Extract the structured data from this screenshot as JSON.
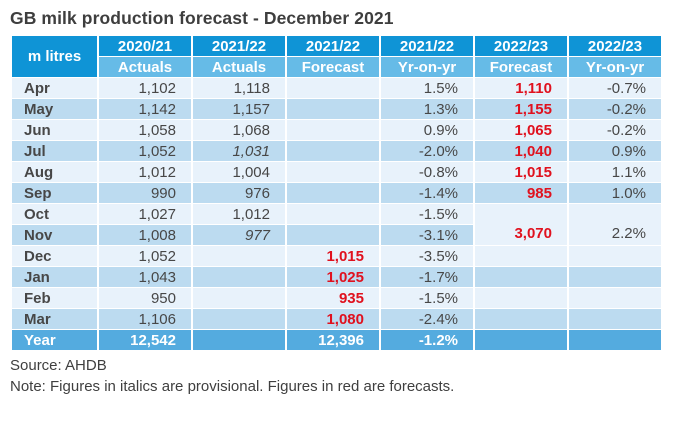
{
  "title": "GB milk production forecast - December 2021",
  "colors": {
    "header_blue": "#0f94d6",
    "subheader_blue": "#66bbe7",
    "year_row_blue": "#54abdf",
    "stripe_light": "#e8f2fb",
    "stripe_medium": "#bcdbf0",
    "forecast_red": "#e0111e",
    "text_gray": "#474747"
  },
  "table": {
    "corner_label": "m litres",
    "columns": [
      {
        "year": "2020/21",
        "sub": "Actuals"
      },
      {
        "year": "2021/22",
        "sub": "Actuals"
      },
      {
        "year": "2021/22",
        "sub": "Forecast"
      },
      {
        "year": "2021/22",
        "sub": "Yr-on-yr"
      },
      {
        "year": "2022/23",
        "sub": "Forecast"
      },
      {
        "year": "2022/23",
        "sub": "Yr-on-yr"
      }
    ],
    "rows": [
      {
        "month": "Apr",
        "cells": [
          {
            "text": "1,102"
          },
          {
            "text": "1,118"
          },
          {
            "text": ""
          },
          {
            "text": "1.5%"
          },
          {
            "text": "1,110",
            "red": true
          },
          {
            "text": "-0.7%"
          }
        ]
      },
      {
        "month": "May",
        "cells": [
          {
            "text": "1,142"
          },
          {
            "text": "1,157"
          },
          {
            "text": ""
          },
          {
            "text": "1.3%"
          },
          {
            "text": "1,155",
            "red": true
          },
          {
            "text": "-0.2%"
          }
        ]
      },
      {
        "month": "Jun",
        "cells": [
          {
            "text": "1,058"
          },
          {
            "text": "1,068"
          },
          {
            "text": ""
          },
          {
            "text": "0.9%"
          },
          {
            "text": "1,065",
            "red": true
          },
          {
            "text": "-0.2%"
          }
        ]
      },
      {
        "month": "Jul",
        "cells": [
          {
            "text": "1,052"
          },
          {
            "text": "1,031",
            "italic": true
          },
          {
            "text": ""
          },
          {
            "text": "-2.0%"
          },
          {
            "text": "1,040",
            "red": true
          },
          {
            "text": "0.9%"
          }
        ]
      },
      {
        "month": "Aug",
        "cells": [
          {
            "text": "1,012"
          },
          {
            "text": "1,004"
          },
          {
            "text": ""
          },
          {
            "text": "-0.8%"
          },
          {
            "text": "1,015",
            "red": true
          },
          {
            "text": "1.1%"
          }
        ]
      },
      {
        "month": "Sep",
        "cells": [
          {
            "text": "990"
          },
          {
            "text": "976"
          },
          {
            "text": ""
          },
          {
            "text": "-1.4%"
          },
          {
            "text": "985",
            "red": true
          },
          {
            "text": "1.0%"
          }
        ]
      },
      {
        "month": "Oct",
        "cells": [
          {
            "text": "1,027"
          },
          {
            "text": "1,012"
          },
          {
            "text": ""
          },
          {
            "text": "-1.5%"
          },
          {
            "text": "3,070",
            "red": true,
            "rowspan": 2
          },
          {
            "text": "2.2%",
            "rowspan": 2
          }
        ]
      },
      {
        "month": "Nov",
        "cells": [
          {
            "text": "1,008"
          },
          {
            "text": "977",
            "italic": true
          },
          {
            "text": ""
          },
          {
            "text": "-3.1%"
          }
        ]
      },
      {
        "month": "Dec",
        "cells": [
          {
            "text": "1,052"
          },
          {
            "text": ""
          },
          {
            "text": "1,015",
            "red": true
          },
          {
            "text": "-3.5%"
          },
          {
            "text": ""
          },
          {
            "text": ""
          }
        ]
      },
      {
        "month": "Jan",
        "cells": [
          {
            "text": "1,043"
          },
          {
            "text": ""
          },
          {
            "text": "1,025",
            "red": true
          },
          {
            "text": "-1.7%"
          },
          {
            "text": ""
          },
          {
            "text": ""
          }
        ]
      },
      {
        "month": "Feb",
        "cells": [
          {
            "text": "950"
          },
          {
            "text": ""
          },
          {
            "text": "935",
            "red": true
          },
          {
            "text": "-1.5%"
          },
          {
            "text": ""
          },
          {
            "text": ""
          }
        ]
      },
      {
        "month": "Mar",
        "cells": [
          {
            "text": "1,106"
          },
          {
            "text": ""
          },
          {
            "text": "1,080",
            "red": true
          },
          {
            "text": "-2.4%"
          },
          {
            "text": ""
          },
          {
            "text": ""
          }
        ]
      }
    ],
    "year_row": {
      "label": "Year",
      "cells": [
        "12,542",
        "",
        "12,396",
        "-1.2%",
        "",
        ""
      ]
    }
  },
  "footer": {
    "source": "Source: AHDB",
    "note": "Note: Figures in italics are provisional. Figures in red are forecasts."
  },
  "chart_data": {
    "type": "table",
    "title": "GB milk production forecast - December 2021",
    "unit": "m litres",
    "categories": [
      "Apr",
      "May",
      "Jun",
      "Jul",
      "Aug",
      "Sep",
      "Oct",
      "Nov",
      "Dec",
      "Jan",
      "Feb",
      "Mar",
      "Year"
    ],
    "series": [
      {
        "name": "2020/21 Actuals",
        "values": [
          1102,
          1142,
          1058,
          1052,
          1012,
          990,
          1027,
          1008,
          1052,
          1043,
          950,
          1106,
          12542
        ]
      },
      {
        "name": "2021/22 Actuals",
        "values": [
          1118,
          1157,
          1068,
          1031,
          1004,
          976,
          1012,
          977,
          null,
          null,
          null,
          null,
          null
        ],
        "provisional_italic": [
          "Jul",
          "Nov"
        ]
      },
      {
        "name": "2021/22 Forecast",
        "values": [
          null,
          null,
          null,
          null,
          null,
          null,
          null,
          null,
          1015,
          1025,
          935,
          1080,
          12396
        ],
        "forecast_red": true
      },
      {
        "name": "2021/22 Yr-on-yr",
        "values": [
          "1.5%",
          "1.3%",
          "0.9%",
          "-2.0%",
          "-0.8%",
          "-1.4%",
          "-1.5%",
          "-3.1%",
          "-3.5%",
          "-1.7%",
          "-1.5%",
          "-2.4%",
          "-1.2%"
        ]
      },
      {
        "name": "2022/23 Forecast",
        "values": [
          1110,
          1155,
          1065,
          1040,
          1015,
          985,
          null,
          3070,
          null,
          null,
          null,
          null,
          null
        ],
        "forecast_red": true,
        "merged_oct_nov_value": 3070
      },
      {
        "name": "2022/23 Yr-on-yr",
        "values": [
          "-0.7%",
          "-0.2%",
          "-0.2%",
          "0.9%",
          "1.1%",
          "1.0%",
          null,
          "2.2%",
          null,
          null,
          null,
          null,
          null
        ],
        "merged_oct_nov_value": "2.2%"
      }
    ],
    "layout_hints": {
      "striped_rows": true,
      "oct_nov_2022_23_cells_merged": true,
      "year_row_highlight": true
    }
  }
}
